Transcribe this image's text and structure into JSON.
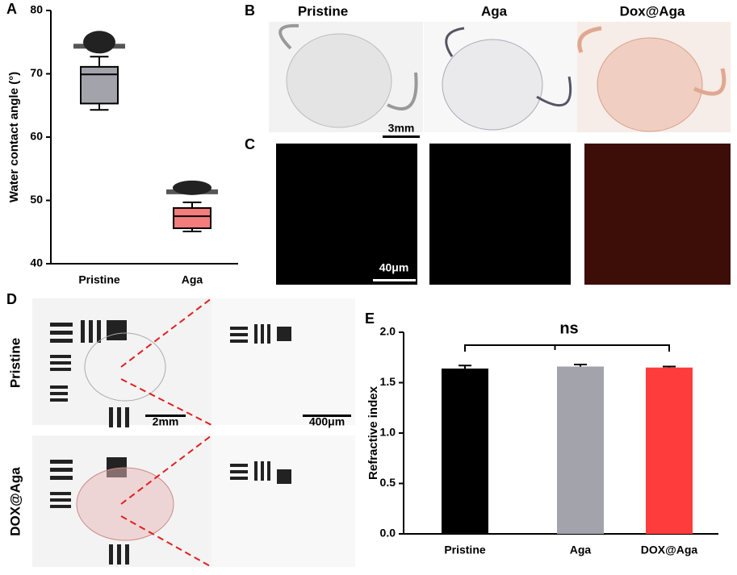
{
  "panel_letters": [
    "A",
    "B",
    "C",
    "D",
    "E"
  ],
  "panel_b": {
    "titles": [
      "Pristine",
      "Aga",
      "Dox@Aga"
    ],
    "scale": "3mm"
  },
  "panel_c": {
    "scale": "40μm"
  },
  "panel_d": {
    "rows": [
      "Pristine",
      "DOX@Aga"
    ],
    "scale_left": "2mm",
    "scale_right": "400μm"
  },
  "chart_data": [
    {
      "type": "box",
      "ylabel": "Water contact angle (°)",
      "categories": [
        "Pristine",
        "Aga"
      ],
      "min": [
        64.3,
        45.1
      ],
      "q1": [
        65.3,
        45.6
      ],
      "median": [
        69.9,
        47.5
      ],
      "q3": [
        71.1,
        48.8
      ],
      "max": [
        72.7,
        49.7
      ],
      "colors": [
        "#a3a3ab",
        "#f47c7c"
      ],
      "ylim": [
        40,
        80
      ],
      "yticks": [
        40,
        50,
        60,
        70,
        80
      ]
    },
    {
      "type": "bar",
      "ylabel": "Refractive index",
      "annotation": "ns",
      "categories": [
        "Pristine",
        "Aga",
        "DOX@Aga"
      ],
      "values": [
        1.64,
        1.66,
        1.65
      ],
      "errors": [
        0.03,
        0.02,
        0.01
      ],
      "colors": [
        "#000000",
        "#a3a3ab",
        "#ff3c3c"
      ],
      "ylim": [
        0,
        2
      ],
      "yticks": [
        {
          "value": 0,
          "label": "0.0"
        },
        {
          "value": 0.5,
          "label": "0.5"
        },
        {
          "value": 1,
          "label": "1.0"
        },
        {
          "value": 1.5,
          "label": "1.5"
        },
        {
          "value": 2,
          "label": "2.0"
        }
      ]
    }
  ]
}
